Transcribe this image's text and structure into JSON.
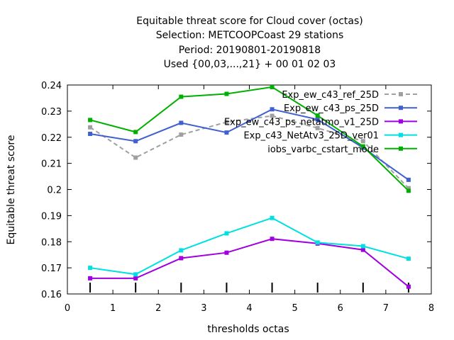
{
  "chart_data": {
    "type": "line",
    "title_lines": [
      "Equitable threat score  for Cloud cover (octas)",
      "Selection: METCOOPCoast     29 stations",
      "Period: 20190801-20190818",
      "Used {00,03,...,21} + 00 01 02 03"
    ],
    "xlabel": "thresholds octas",
    "ylabel": "Equitable threat score",
    "xlim": [
      0,
      8
    ],
    "ylim": [
      0.16,
      0.24
    ],
    "x_ticks": [
      "0",
      "1",
      "2",
      "3",
      "4",
      "5",
      "6",
      "7",
      "8"
    ],
    "y_ticks": [
      "0.16",
      "0.17",
      "0.18",
      "0.19",
      "0.2",
      "0.21",
      "0.22",
      "0.23",
      "0.24"
    ],
    "legend_position": "top-right",
    "grid": false,
    "x": [
      0.5,
      1.5,
      2.5,
      3.5,
      4.5,
      5.5,
      6.5,
      7.5
    ],
    "series": [
      {
        "name": "Exp_ew_c43_ref_25D",
        "color": "#a0a0a0",
        "dashed": true,
        "values": [
          0.2238,
          0.2122,
          0.221,
          0.2258,
          0.2282,
          0.2235,
          0.2185,
          0.2005
        ]
      },
      {
        "name": "Exp_ew_c43_ps_25D",
        "color": "#4060d0",
        "dashed": false,
        "values": [
          0.2213,
          0.2185,
          0.2255,
          0.2218,
          0.2307,
          0.2268,
          0.216,
          0.2037
        ]
      },
      {
        "name": "Exp_ew_c43_ps_netatmo_v1_25D",
        "color": "#a000e0",
        "dashed": false,
        "values": [
          0.166,
          0.166,
          0.1737,
          0.1758,
          0.1811,
          0.1793,
          0.1769,
          0.1628
        ]
      },
      {
        "name": "Exp_c43_NetAtv3_25D_ver01",
        "color": "#00e0e0",
        "dashed": false,
        "values": [
          0.17,
          0.1675,
          0.1767,
          0.1832,
          0.1891,
          0.1797,
          0.1783,
          0.1735
        ]
      },
      {
        "name": "iobs_varbc_cstart_mode",
        "color": "#00b000",
        "dashed": false,
        "values": [
          0.2266,
          0.222,
          0.2355,
          0.2366,
          0.2392,
          0.2283,
          0.2165,
          0.1995
        ]
      }
    ],
    "sample_markers_x": [
      0.5,
      1.5,
      2.5,
      3.5,
      4.5,
      5.5,
      6.5,
      7.5
    ]
  }
}
